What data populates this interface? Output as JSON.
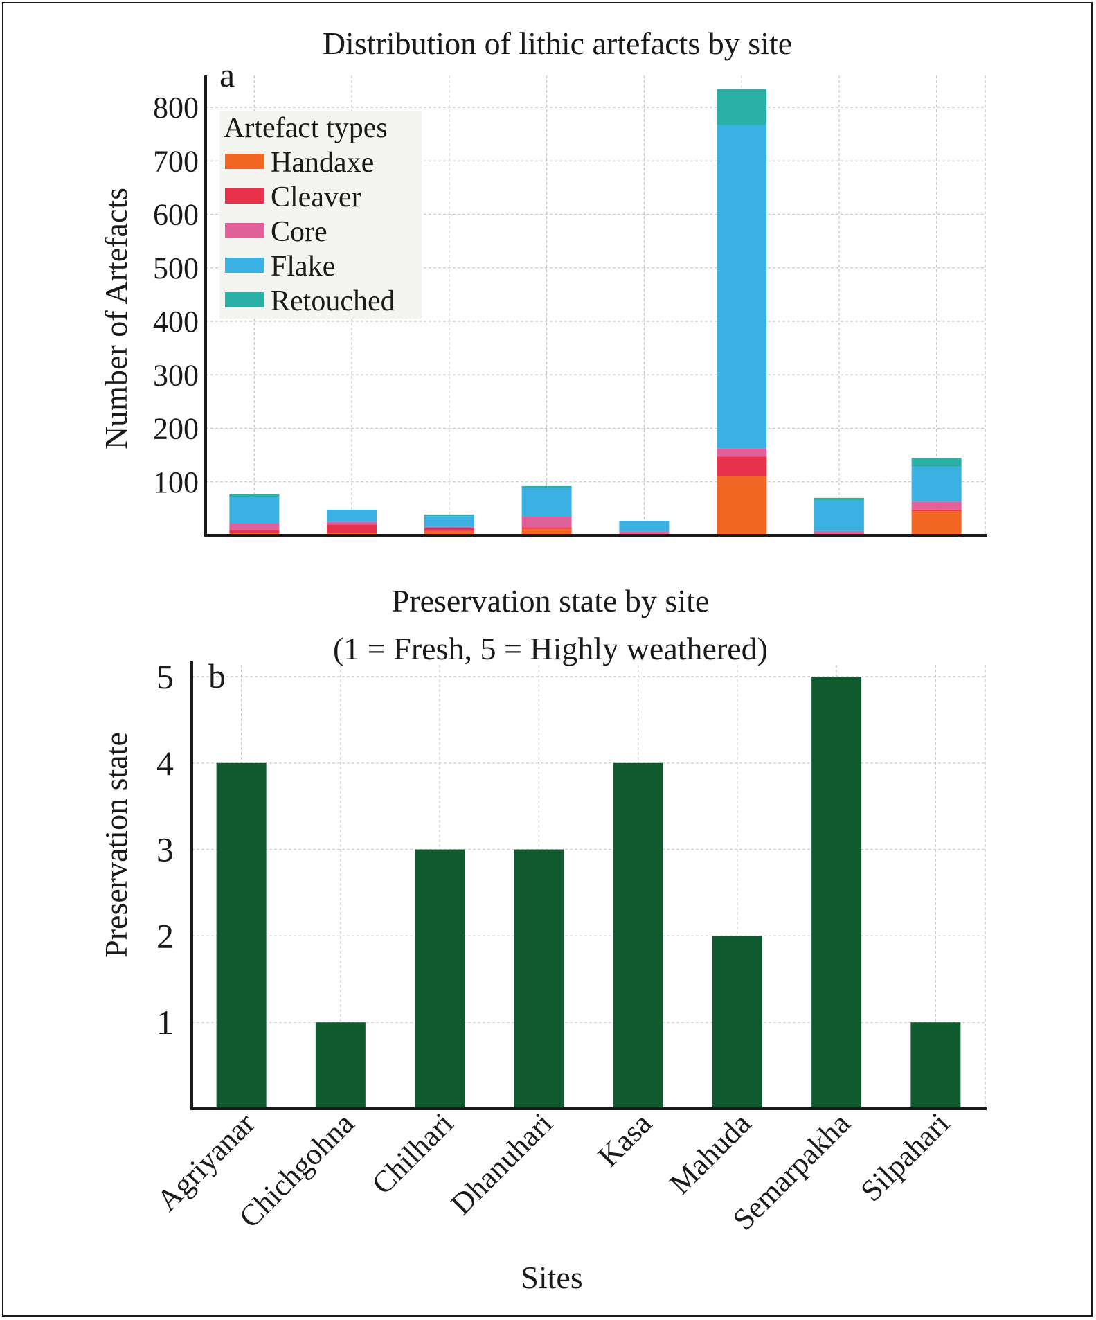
{
  "chart_data": [
    {
      "type": "bar",
      "stacked": true,
      "panel_label": "a",
      "title": "Distribution of lithic artefacts by site",
      "xlabel": "",
      "ylabel": "Number of Artefacts",
      "ylim": [
        0,
        850
      ],
      "yticks": [
        100,
        200,
        300,
        400,
        500,
        600,
        700,
        800
      ],
      "grid": true,
      "legend": {
        "title": "Artefact types",
        "placement": "top-left"
      },
      "categories": [
        "Agriyanar",
        "Chichgohna",
        "Chilhari",
        "Dhanuhari",
        "Kasa",
        "Mahuda",
        "Semarpakha",
        "Silpahari"
      ],
      "series": [
        {
          "name": "Handaxe",
          "color": "#F26522",
          "values": [
            5,
            5,
            8,
            12,
            0,
            110,
            0,
            45
          ]
        },
        {
          "name": "Cleaver",
          "color": "#E8314A",
          "values": [
            5,
            15,
            5,
            3,
            2,
            37,
            3,
            3
          ]
        },
        {
          "name": "Core",
          "color": "#E0609A",
          "values": [
            12,
            5,
            3,
            20,
            5,
            15,
            5,
            15
          ]
        },
        {
          "name": "Flake",
          "color": "#3AB0E3",
          "values": [
            50,
            23,
            20,
            54,
            20,
            605,
            57,
            65
          ]
        },
        {
          "name": "Retouched",
          "color": "#2BB0A8",
          "values": [
            5,
            0,
            3,
            3,
            0,
            67,
            5,
            17
          ]
        }
      ]
    },
    {
      "type": "bar",
      "panel_label": "b",
      "title": "Preservation state by site",
      "subtitle": "(1 = Fresh, 5 = Highly weathered)",
      "xlabel": "Sites",
      "ylabel": "Preservation state",
      "ylim": [
        0,
        5
      ],
      "yticks": [
        1,
        2,
        3,
        4,
        5
      ],
      "grid": true,
      "color": "#0F5A2E",
      "categories": [
        "Agriyanar",
        "Chichgohna",
        "Chilhari",
        "Dhanuhari",
        "Kasa",
        "Mahuda",
        "Semarpakha",
        "Silpahari"
      ],
      "values": [
        4,
        1,
        3,
        3,
        4,
        2,
        5,
        1
      ]
    }
  ]
}
